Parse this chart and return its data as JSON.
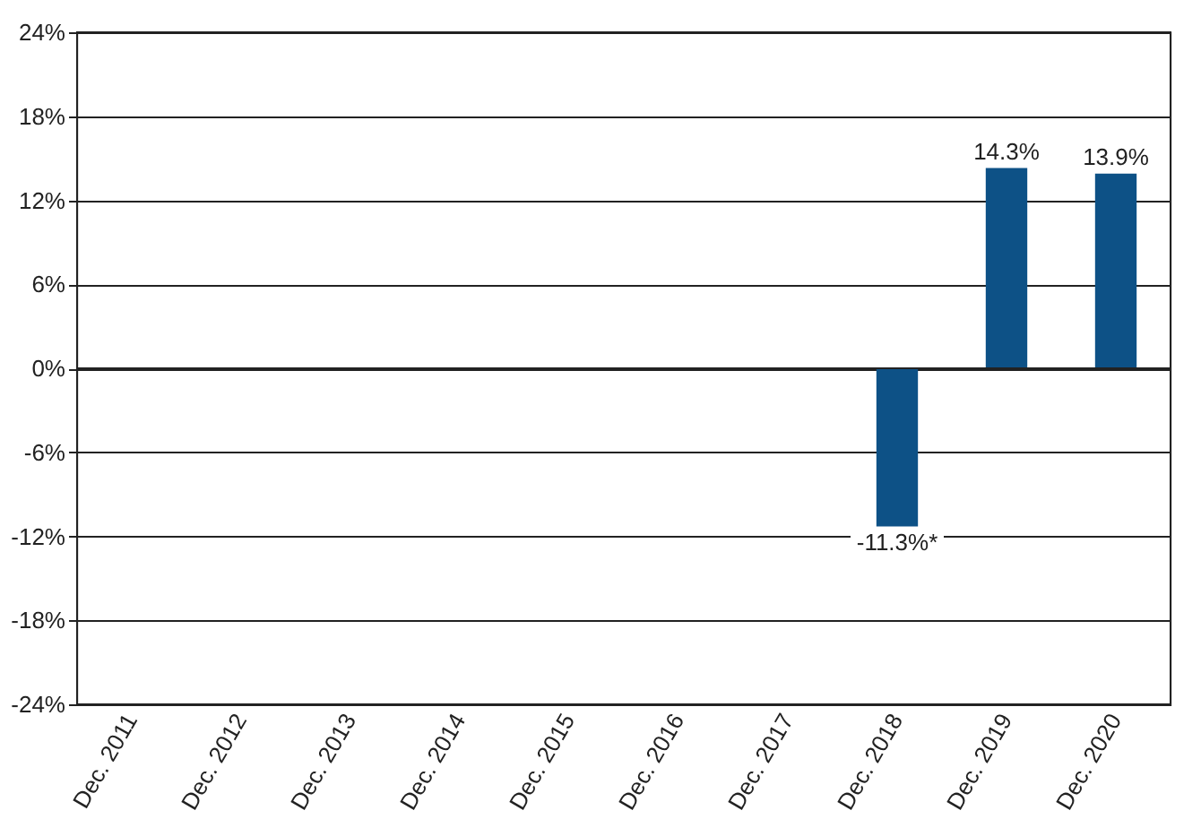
{
  "chart_data": {
    "type": "bar",
    "categories": [
      "Dec. 2011",
      "Dec. 2012",
      "Dec. 2013",
      "Dec. 2014",
      "Dec. 2015",
      "Dec. 2016",
      "Dec. 2017",
      "Dec. 2018",
      "Dec. 2019",
      "Dec. 2020"
    ],
    "values": [
      null,
      null,
      null,
      null,
      null,
      null,
      null,
      -11.3,
      14.3,
      13.9
    ],
    "value_labels": [
      null,
      null,
      null,
      null,
      null,
      null,
      null,
      "-11.3%*",
      "14.3%",
      "13.9%"
    ],
    "color": "#0d5186",
    "ylim": [
      -24,
      24
    ],
    "yticks": [
      {
        "value": -24,
        "label": "-24%"
      },
      {
        "value": -18,
        "label": "-18%"
      },
      {
        "value": -12,
        "label": "-12%"
      },
      {
        "value": -6,
        "label": "-6%"
      },
      {
        "value": 0,
        "label": "0%"
      },
      {
        "value": 6,
        "label": "6%"
      },
      {
        "value": 12,
        "label": "12%"
      },
      {
        "value": 18,
        "label": "18%"
      },
      {
        "value": 24,
        "label": "24%"
      }
    ],
    "grid": "y"
  }
}
